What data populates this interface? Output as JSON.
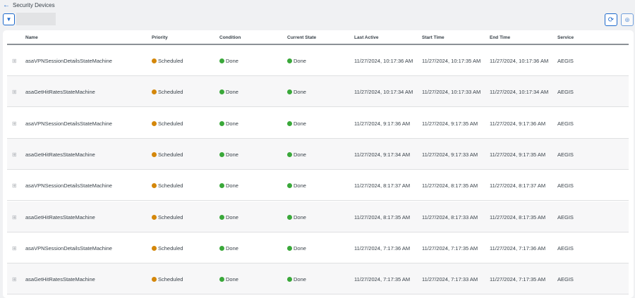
{
  "header": {
    "back_label": "Security Devices",
    "back_icon": "arrow-left-icon",
    "filter_icon": "filter-icon",
    "refresh_icon": "refresh-icon",
    "download_icon": "download-icon"
  },
  "colors": {
    "accent": "#1d69cc",
    "scheduled": "#d4870a",
    "done": "#3aa83a"
  },
  "table": {
    "columns": [
      "Name",
      "Priority",
      "Condition",
      "Current State",
      "Last Active",
      "Start Time",
      "End Time",
      "Service"
    ],
    "rows": [
      {
        "name": "asaVPNSessionDetailsStateMachine",
        "priority": "Scheduled",
        "condition": "Done",
        "state": "Done",
        "last_active": "11/27/2024, 10:17:36 AM",
        "start": "11/27/2024, 10:17:35 AM",
        "end": "11/27/2024, 10:17:36 AM",
        "service": "AEGIS"
      },
      {
        "name": "asaGetHitRatesStateMachine",
        "priority": "Scheduled",
        "condition": "Done",
        "state": "Done",
        "last_active": "11/27/2024, 10:17:34 AM",
        "start": "11/27/2024, 10:17:33 AM",
        "end": "11/27/2024, 10:17:34 AM",
        "service": "AEGIS"
      },
      {
        "name": "asaVPNSessionDetailsStateMachine",
        "priority": "Scheduled",
        "condition": "Done",
        "state": "Done",
        "last_active": "11/27/2024, 9:17:36 AM",
        "start": "11/27/2024, 9:17:35 AM",
        "end": "11/27/2024, 9:17:36 AM",
        "service": "AEGIS"
      },
      {
        "name": "asaGetHitRatesStateMachine",
        "priority": "Scheduled",
        "condition": "Done",
        "state": "Done",
        "last_active": "11/27/2024, 9:17:34 AM",
        "start": "11/27/2024, 9:17:33 AM",
        "end": "11/27/2024, 9:17:35 AM",
        "service": "AEGIS"
      },
      {
        "name": "asaVPNSessionDetailsStateMachine",
        "priority": "Scheduled",
        "condition": "Done",
        "state": "Done",
        "last_active": "11/27/2024, 8:17:37 AM",
        "start": "11/27/2024, 8:17:35 AM",
        "end": "11/27/2024, 8:17:37 AM",
        "service": "AEGIS"
      },
      {
        "name": "asaGetHitRatesStateMachine",
        "priority": "Scheduled",
        "condition": "Done",
        "state": "Done",
        "last_active": "11/27/2024, 8:17:35 AM",
        "start": "11/27/2024, 8:17:33 AM",
        "end": "11/27/2024, 8:17:35 AM",
        "service": "AEGIS"
      },
      {
        "name": "asaVPNSessionDetailsStateMachine",
        "priority": "Scheduled",
        "condition": "Done",
        "state": "Done",
        "last_active": "11/27/2024, 7:17:36 AM",
        "start": "11/27/2024, 7:17:35 AM",
        "end": "11/27/2024, 7:17:36 AM",
        "service": "AEGIS"
      },
      {
        "name": "asaGetHitRatesStateMachine",
        "priority": "Scheduled",
        "condition": "Done",
        "state": "Done",
        "last_active": "11/27/2024, 7:17:35 AM",
        "start": "11/27/2024, 7:17:33 AM",
        "end": "11/27/2024, 7:17:35 AM",
        "service": "AEGIS"
      }
    ]
  }
}
